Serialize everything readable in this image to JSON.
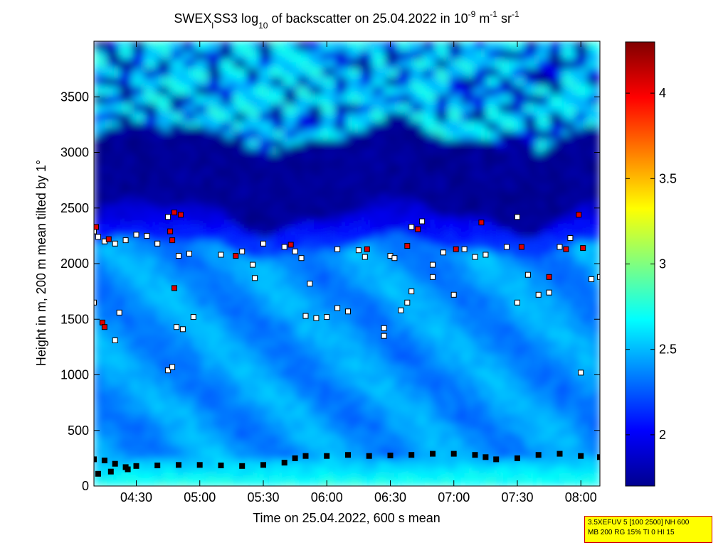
{
  "chart_data": {
    "type": "heatmap",
    "title": {
      "prefix": "SWEX",
      "sub_l": "l",
      "middle": "SS3 log",
      "sub_10": "10",
      "after_log": " of backscatter on 25.04.2022 in 10",
      "sup_m9": "-9",
      "unit_m": " m",
      "sup_m1": "-1",
      "unit_sr": " sr",
      "sup_m1b": "-1"
    },
    "xlabel": "Time on 25.04.2022, 600 s mean",
    "ylabel": "Height in m, 200 m mean tilted by 1°",
    "x_range": [
      "04:10",
      "08:09"
    ],
    "x_ticks": [
      "04:30",
      "05:00",
      "05:30",
      "06:00",
      "06:30",
      "07:00",
      "07:30",
      "08:00"
    ],
    "ylim": [
      0,
      4000
    ],
    "y_ticks": [
      0,
      500,
      1000,
      1500,
      2000,
      2500,
      3000,
      3500
    ],
    "colorbar": {
      "range": [
        1.7,
        4.3
      ],
      "ticks": [
        "2",
        "2.5",
        "3",
        "3.5",
        "4"
      ],
      "colormap": "jet"
    },
    "field_description_levels": {
      "surface_layer_0_250m": 2.75,
      "boundary_layer_300_2000m": 2.4,
      "gap_2500_3100m": 1.75,
      "upper_cloud_3200_3900m": 2.6
    },
    "series": [
      {
        "marker": "white-square",
        "points": [
          [
            "04:10",
            2290
          ],
          [
            "04:12",
            2240
          ],
          [
            "04:15",
            2200
          ],
          [
            "04:20",
            2180
          ],
          [
            "04:25",
            2210
          ],
          [
            "04:30",
            2260
          ],
          [
            "04:35",
            2250
          ],
          [
            "04:40",
            2180
          ],
          [
            "04:45",
            2420
          ],
          [
            "04:50",
            2070
          ],
          [
            "04:55",
            2090
          ],
          [
            "05:10",
            2080
          ],
          [
            "05:20",
            2110
          ],
          [
            "05:25",
            1990
          ],
          [
            "05:30",
            2180
          ],
          [
            "05:40",
            2150
          ],
          [
            "05:45",
            2110
          ],
          [
            "05:50",
            1530
          ],
          [
            "05:55",
            1510
          ],
          [
            "06:00",
            1520
          ],
          [
            "06:05",
            1600
          ],
          [
            "06:10",
            1570
          ],
          [
            "06:15",
            2120
          ],
          [
            "06:30",
            2070
          ],
          [
            "06:35",
            1580
          ],
          [
            "06:40",
            2330
          ],
          [
            "06:45",
            2380
          ],
          [
            "06:50",
            1990
          ],
          [
            "06:55",
            2100
          ],
          [
            "07:00",
            1720
          ],
          [
            "07:05",
            2130
          ],
          [
            "07:10",
            2060
          ],
          [
            "07:15",
            2080
          ],
          [
            "07:25",
            2150
          ],
          [
            "07:30",
            1650
          ],
          [
            "07:35",
            1900
          ],
          [
            "07:40",
            1720
          ],
          [
            "07:45",
            1740
          ],
          [
            "07:50",
            2150
          ],
          [
            "07:55",
            2230
          ],
          [
            "08:00",
            1020
          ],
          [
            "08:05",
            1860
          ],
          [
            "08:09",
            1880
          ],
          [
            "04:10",
            1650
          ],
          [
            "04:20",
            1310
          ],
          [
            "04:22",
            1560
          ],
          [
            "04:45",
            1040
          ],
          [
            "04:47",
            1070
          ],
          [
            "04:49",
            1430
          ],
          [
            "04:52",
            1410
          ],
          [
            "04:57",
            1520
          ],
          [
            "05:26",
            1870
          ],
          [
            "05:52",
            1820
          ],
          [
            "06:27",
            1420
          ],
          [
            "06:27",
            1350
          ],
          [
            "06:38",
            1650
          ],
          [
            "06:40",
            1750
          ],
          [
            "07:30",
            2420
          ],
          [
            "05:48",
            2050
          ],
          [
            "06:05",
            2130
          ],
          [
            "06:18",
            2060
          ],
          [
            "06:32",
            2050
          ],
          [
            "06:50",
            1880
          ]
        ]
      },
      {
        "marker": "red-square",
        "points": [
          [
            "04:11",
            2330
          ],
          [
            "04:14",
            1470
          ],
          [
            "04:15",
            1430
          ],
          [
            "04:17",
            2220
          ],
          [
            "04:46",
            2290
          ],
          [
            "04:47",
            2210
          ],
          [
            "04:48",
            1780
          ],
          [
            "04:48",
            2460
          ],
          [
            "04:51",
            2440
          ],
          [
            "05:17",
            2070
          ],
          [
            "05:43",
            2170
          ],
          [
            "06:19",
            2130
          ],
          [
            "06:38",
            2160
          ],
          [
            "06:43",
            2310
          ],
          [
            "07:01",
            2130
          ],
          [
            "07:13",
            2370
          ],
          [
            "07:32",
            2150
          ],
          [
            "07:45",
            1880
          ],
          [
            "07:53",
            2130
          ],
          [
            "07:59",
            2440
          ],
          [
            "08:01",
            2140
          ]
        ]
      },
      {
        "marker": "black-square",
        "points": [
          [
            "04:10",
            240
          ],
          [
            "04:15",
            230
          ],
          [
            "04:20",
            200
          ],
          [
            "04:25",
            170
          ],
          [
            "04:30",
            180
          ],
          [
            "04:40",
            185
          ],
          [
            "04:50",
            190
          ],
          [
            "05:00",
            190
          ],
          [
            "05:10",
            185
          ],
          [
            "05:20",
            180
          ],
          [
            "05:30",
            190
          ],
          [
            "05:40",
            210
          ],
          [
            "05:45",
            250
          ],
          [
            "05:50",
            270
          ],
          [
            "06:00",
            270
          ],
          [
            "06:10",
            280
          ],
          [
            "06:20",
            270
          ],
          [
            "06:30",
            275
          ],
          [
            "06:40",
            280
          ],
          [
            "06:50",
            290
          ],
          [
            "07:00",
            290
          ],
          [
            "07:10",
            280
          ],
          [
            "07:15",
            260
          ],
          [
            "07:20",
            240
          ],
          [
            "07:30",
            250
          ],
          [
            "07:40",
            280
          ],
          [
            "07:50",
            290
          ],
          [
            "08:00",
            270
          ],
          [
            "08:09",
            260
          ],
          [
            "04:12",
            110
          ],
          [
            "04:18",
            130
          ],
          [
            "04:26",
            150
          ]
        ]
      }
    ]
  },
  "info_box": {
    "line1": "3.5XEFUV 5 [100 2500] NH 600",
    "line2": "MB 200 RG 15% TI 0 HI 15",
    "background": "#ffff00",
    "border": "#d00000"
  }
}
